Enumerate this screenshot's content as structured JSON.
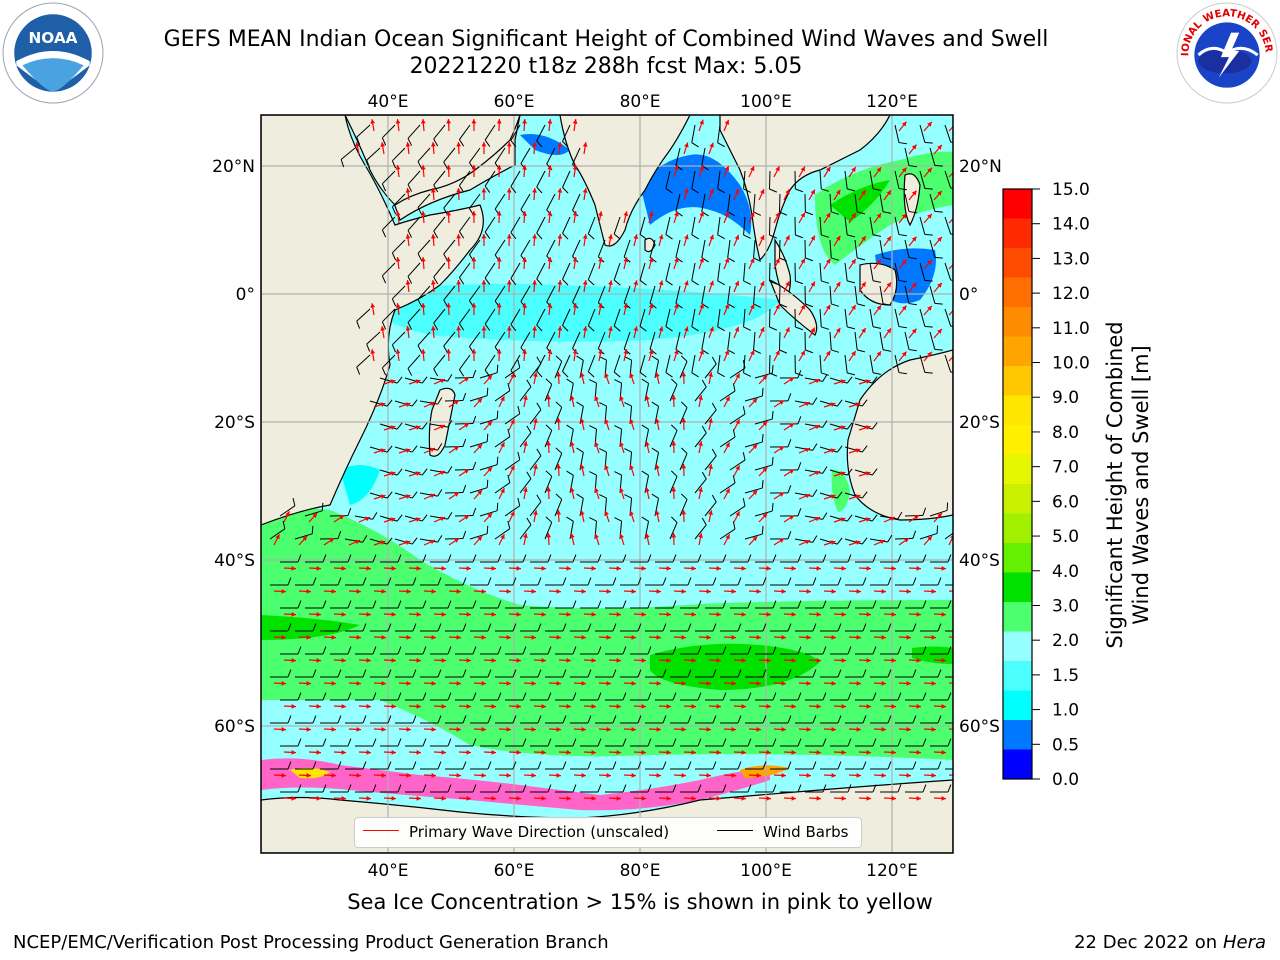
{
  "header": {
    "title_line1": "GEFS MEAN Indian Ocean Significant Height of Combined Wind Waves and Swell",
    "title_line2": "20221220 t18z 288h fcst   Max: 5.05"
  },
  "logos": {
    "left": "noaa-logo",
    "right": "national-weather-service-logo",
    "left_text": "NOAA",
    "right_text": "NATIONAL WEATHER SERVICE"
  },
  "map": {
    "lon_labels": [
      "40°E",
      "60°E",
      "80°E",
      "100°E",
      "120°E"
    ],
    "lat_labels_left": [
      "20°N",
      "0°",
      "20°S",
      "40°S",
      "60°S"
    ],
    "lat_labels_right": [
      "20°N",
      "0°",
      "20°S",
      "40°S",
      "60°S"
    ],
    "lon_range": [
      20,
      130
    ],
    "lat_range": [
      -78,
      27
    ],
    "land_color": "#efedde",
    "ocean_base_color": "#96ffff",
    "arrow_color": "#ff0000",
    "barb_color": "#000000"
  },
  "legend": {
    "items": [
      {
        "label": "Primary Wave Direction (unscaled)",
        "color": "#ff0000"
      },
      {
        "label": "Wind Barbs",
        "color": "#000000"
      }
    ]
  },
  "colorbar": {
    "label_line1": "Significant Height of Combined",
    "label_line2": "Wind Waves and Swell [m]",
    "ticks": [
      "15.0",
      "14.0",
      "13.0",
      "12.0",
      "11.0",
      "10.0",
      "9.0",
      "8.0",
      "7.0",
      "6.0",
      "5.0",
      "4.0",
      "3.0",
      "2.0",
      "1.5",
      "1.0",
      "0.5",
      "0.0"
    ],
    "colors_top_to_bottom": [
      "#ff0000",
      "#ff2a00",
      "#ff4b00",
      "#ff6e00",
      "#ff8c00",
      "#ffa500",
      "#ffc800",
      "#ffe600",
      "#fff000",
      "#e6f500",
      "#c8f000",
      "#a0f000",
      "#64f000",
      "#00e100",
      "#4bff6e",
      "#96ffff",
      "#4bffff",
      "#00ffff",
      "#0078ff",
      "#0000ff"
    ]
  },
  "caption": "Sea Ice Concentration > 15% is shown in pink to yellow",
  "footer": {
    "left": "NCEP/EMC/Verification Post Processing Product Generation Branch",
    "right_date": "22 Dec 2022 on",
    "right_host": "Hera"
  }
}
